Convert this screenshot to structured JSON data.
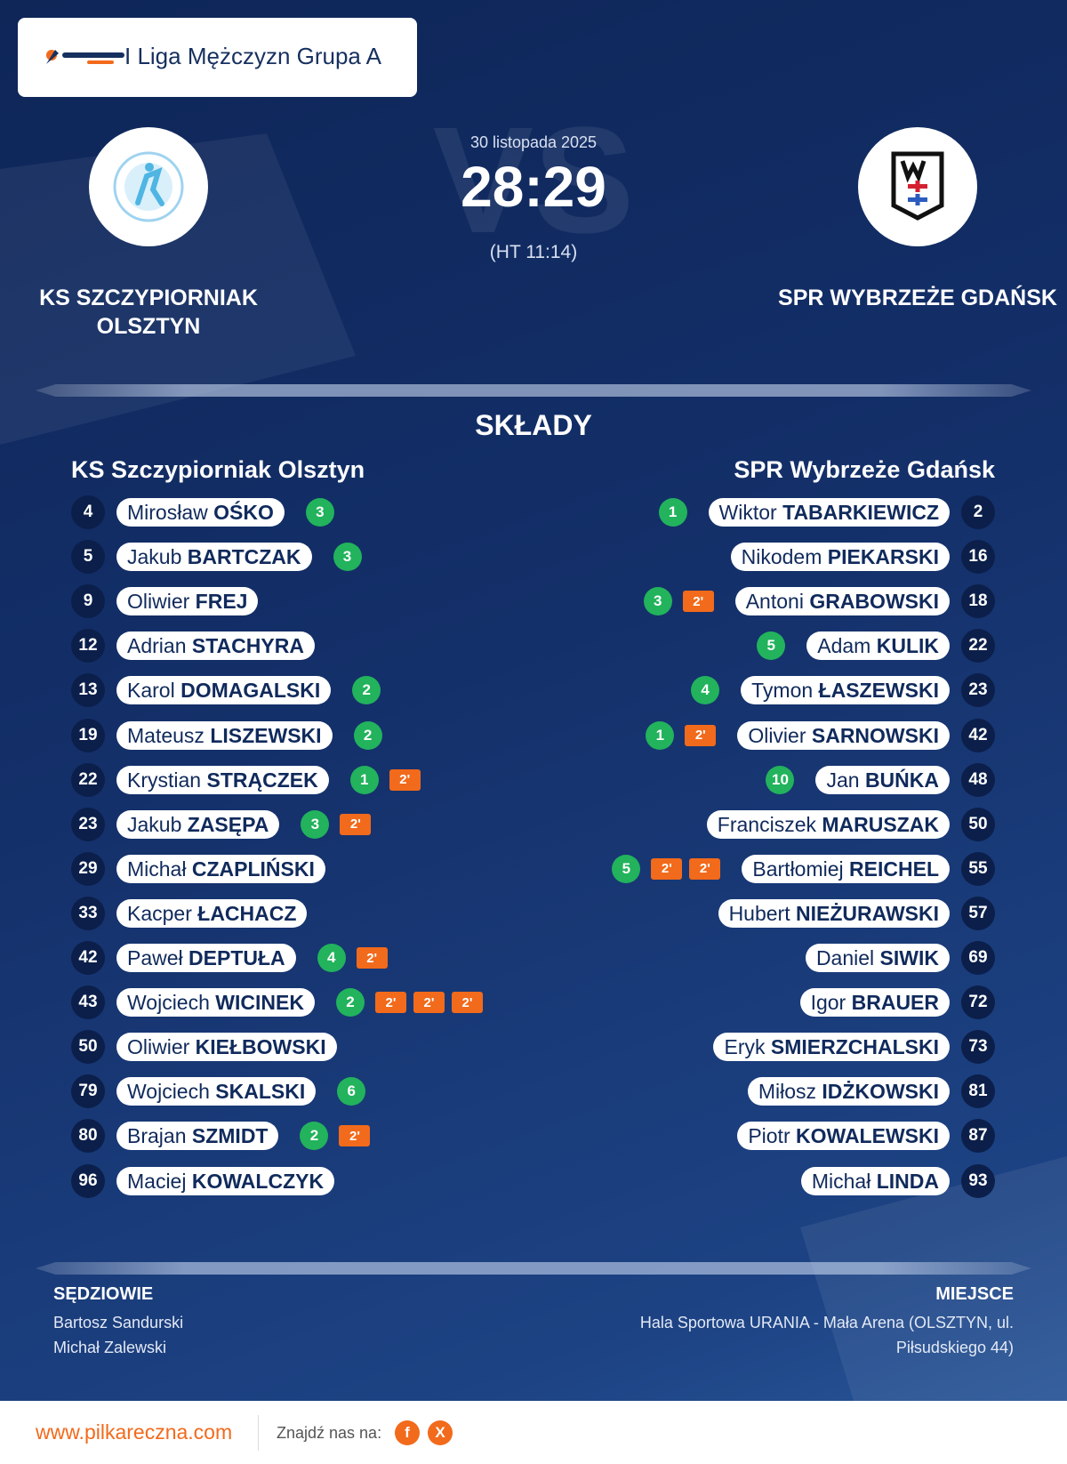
{
  "header": {
    "title": "I Liga Mężczyzn Grupa A"
  },
  "match": {
    "date": "30 listopada 2025",
    "score": "28:29",
    "half_time": "(HT 11:14)",
    "watermark": "VS",
    "home_team": "KS SZCZYPIORNIAK OLSZTYN",
    "away_team": "SPR WYBRZEŻE GDAŃSK"
  },
  "lineups": {
    "title": "SKŁADY",
    "home": {
      "team": "KS Szczypiorniak Olsztyn",
      "players": [
        {
          "number": 4,
          "first": "Mirosław",
          "last": "OŚKO",
          "goals": 3
        },
        {
          "number": 5,
          "first": "Jakub",
          "last": "BARTCZAK",
          "goals": 3
        },
        {
          "number": 9,
          "first": "Oliwier",
          "last": "FREJ"
        },
        {
          "number": 12,
          "first": "Adrian",
          "last": "STACHYRA"
        },
        {
          "number": 13,
          "first": "Karol",
          "last": "DOMAGALSKI",
          "goals": 2
        },
        {
          "number": 19,
          "first": "Mateusz",
          "last": "LISZEWSKI",
          "goals": 2
        },
        {
          "number": 22,
          "first": "Krystian",
          "last": "STRĄCZEK",
          "goals": 1,
          "penalties": [
            "2'"
          ]
        },
        {
          "number": 23,
          "first": "Jakub",
          "last": "ZASĘPA",
          "goals": 3,
          "penalties": [
            "2'"
          ]
        },
        {
          "number": 29,
          "first": "Michał",
          "last": "CZAPLIŃSKI"
        },
        {
          "number": 33,
          "first": "Kacper",
          "last": "ŁACHACZ"
        },
        {
          "number": 42,
          "first": "Paweł",
          "last": "DEPTUŁA",
          "goals": 4,
          "penalties": [
            "2'"
          ]
        },
        {
          "number": 43,
          "first": "Wojciech",
          "last": "WICINEK",
          "goals": 2,
          "penalties": [
            "2'",
            "2'",
            "2'"
          ]
        },
        {
          "number": 50,
          "first": "Oliwier",
          "last": "KIEŁBOWSKI"
        },
        {
          "number": 79,
          "first": "Wojciech",
          "last": "SKALSKI",
          "goals": 6
        },
        {
          "number": 80,
          "first": "Brajan",
          "last": "SZMIDT",
          "goals": 2,
          "penalties": [
            "2'"
          ]
        },
        {
          "number": 96,
          "first": "Maciej",
          "last": "KOWALCZYK"
        }
      ]
    },
    "away": {
      "team": "SPR Wybrzeże Gdańsk",
      "players": [
        {
          "number": 2,
          "first": "Wiktor",
          "last": "TABARKIEWICZ",
          "goals": 1
        },
        {
          "number": 16,
          "first": "Nikodem",
          "last": "PIEKARSKI"
        },
        {
          "number": 18,
          "first": "Antoni",
          "last": "GRABOWSKI",
          "goals": 3,
          "penalties": [
            "2'"
          ]
        },
        {
          "number": 22,
          "first": "Adam",
          "last": "KULIK",
          "goals": 5
        },
        {
          "number": 23,
          "first": "Tymon",
          "last": "ŁASZEWSKI",
          "goals": 4
        },
        {
          "number": 42,
          "first": "Olivier",
          "last": "SARNOWSKI",
          "goals": 1,
          "penalties": [
            "2'"
          ]
        },
        {
          "number": 48,
          "first": "Jan",
          "last": "BUŃKA",
          "goals": 10
        },
        {
          "number": 50,
          "first": "Franciszek",
          "last": "MARUSZAK"
        },
        {
          "number": 55,
          "first": "Bartłomiej",
          "last": "REICHEL",
          "goals": 5,
          "penalties": [
            "2'",
            "2'"
          ]
        },
        {
          "number": 57,
          "first": "Hubert",
          "last": "NIEŻURAWSKI"
        },
        {
          "number": 69,
          "first": "Daniel",
          "last": "SIWIK"
        },
        {
          "number": 72,
          "first": "Igor",
          "last": "BRAUER"
        },
        {
          "number": 73,
          "first": "Eryk",
          "last": "SMIERZCHALSKI"
        },
        {
          "number": 81,
          "first": "Miłosz",
          "last": "IDŻKOWSKI"
        },
        {
          "number": 87,
          "first": "Piotr",
          "last": "KOWALEWSKI"
        },
        {
          "number": 93,
          "first": "Michał",
          "last": "LINDA"
        }
      ]
    }
  },
  "officials": {
    "title": "SĘDZIOWIE",
    "names": [
      "Bartosz Sandurski",
      "Michał Zalewski"
    ]
  },
  "venue": {
    "title": "MIEJSCE",
    "text": "Hala Sportowa URANIA - Mała Arena (OLSZTYN, ul. Piłsudskiego 44)"
  },
  "footer": {
    "url": "www.pilkareczna.com",
    "follow": "Znajdź nas na:",
    "facebook": "f",
    "x": "X"
  }
}
